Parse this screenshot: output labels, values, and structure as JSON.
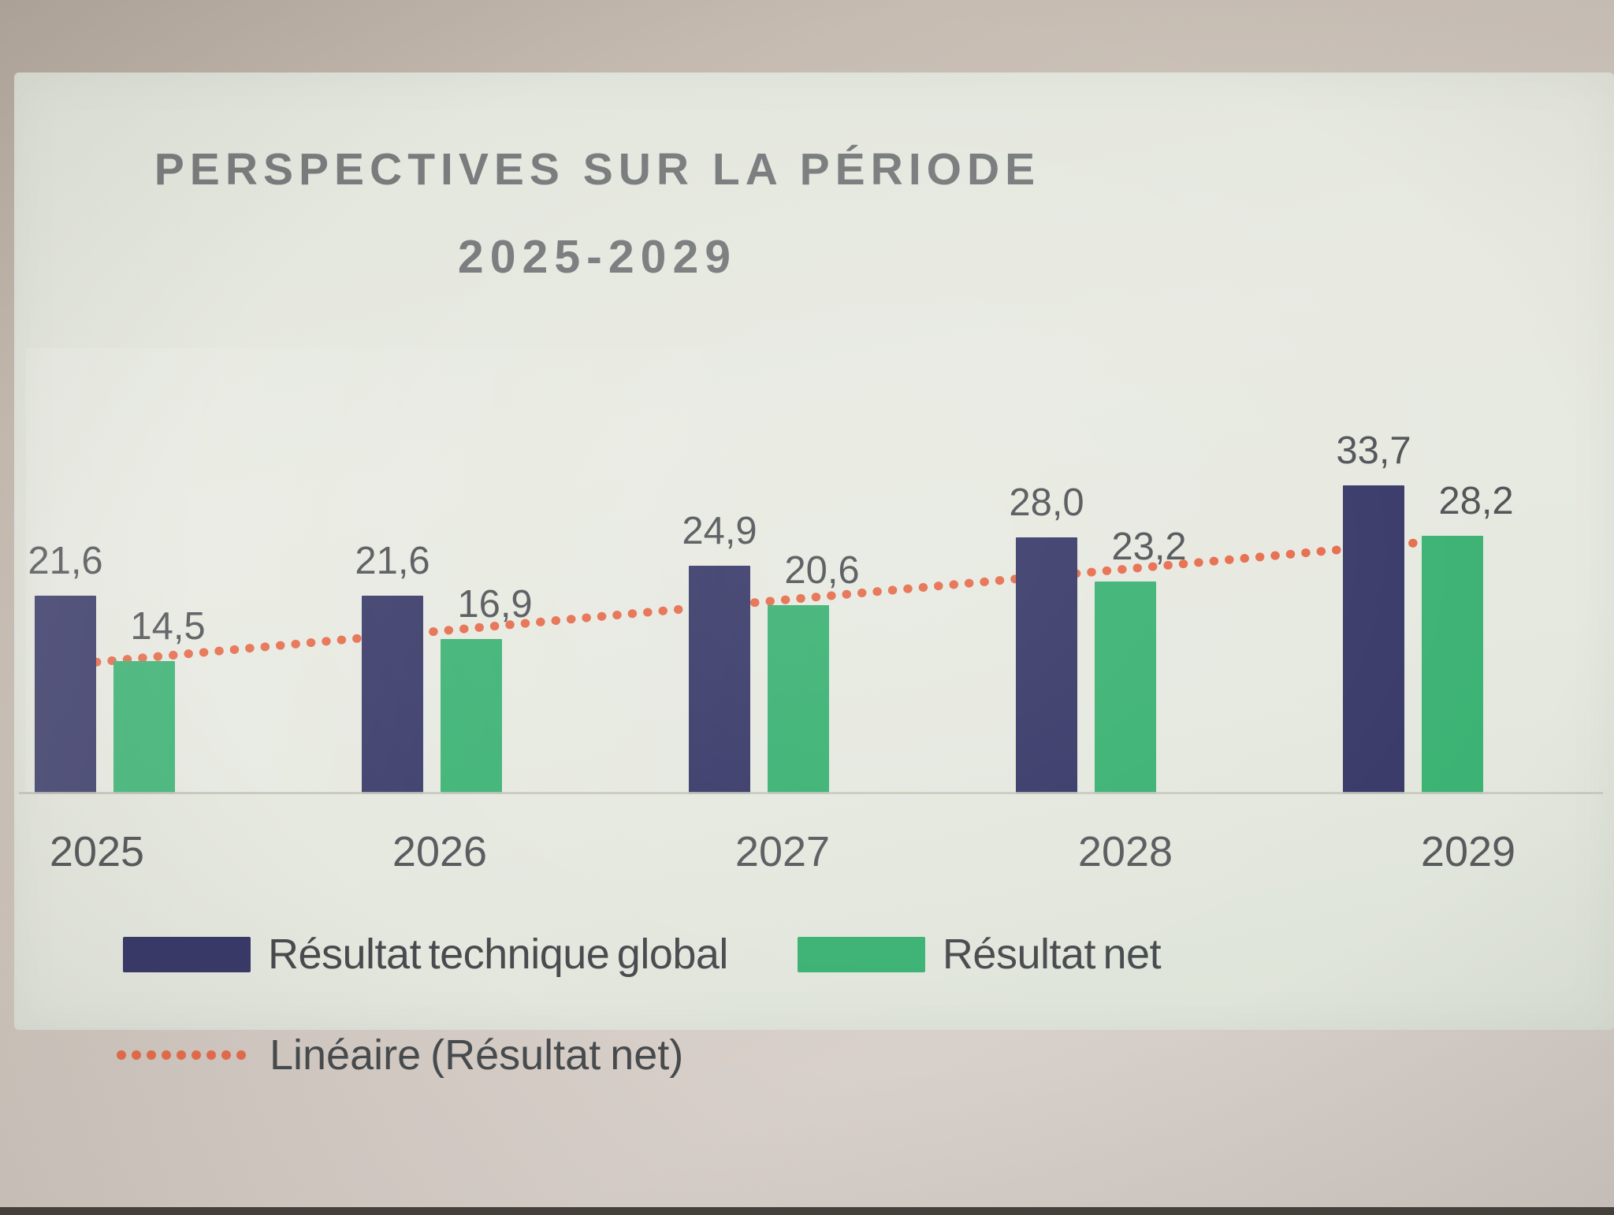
{
  "chart": {
    "title_line1": "PERSPECTIVES SUR LA PÉRIODE",
    "title_line2": "2025-2029",
    "legend": {
      "series1": "Résultat technique global",
      "series2": "Résultat net",
      "trend": "Linéaire (Résultat net)"
    }
  },
  "chart_data": {
    "type": "bar",
    "title": "PERSPECTIVES SUR LA PÉRIODE 2025-2029",
    "categories": [
      "2025",
      "2026",
      "2027",
      "2028",
      "2029"
    ],
    "series": [
      {
        "name": "Résultat technique global",
        "color": "#383968",
        "values": [
          21.6,
          21.6,
          24.9,
          28.0,
          33.7
        ]
      },
      {
        "name": "Résultat net",
        "color": "#3bb273",
        "values": [
          14.5,
          16.9,
          20.6,
          23.2,
          28.2
        ]
      }
    ],
    "value_labels": [
      [
        "21,6",
        "21,6",
        "24,9",
        "28,0",
        "33,7"
      ],
      [
        "14,5",
        "16,9",
        "20,6",
        "23,2",
        "28,2"
      ]
    ],
    "trendline": {
      "name": "Linéaire (Résultat net)",
      "style": "dotted",
      "color": "#e66c4c",
      "start_value": 14.2,
      "end_value": 27.6
    },
    "ylim": [
      0,
      36
    ],
    "xlabel": "",
    "ylabel": "",
    "grid": false,
    "y_axis_visible": false,
    "legend_position": "bottom-left",
    "decimal_separator": ","
  },
  "colors": {
    "panel_background": "#e6e9e0",
    "page_background": "#cdc3ba",
    "title_text": "#797c7d",
    "label_text": "#515457",
    "axis_text": "#585b5e",
    "legend_text": "#474b4e",
    "baseline": "#c7c6bb"
  }
}
